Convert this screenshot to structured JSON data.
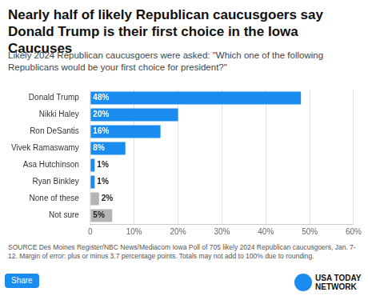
{
  "chart_data": {
    "type": "bar",
    "orientation": "horizontal",
    "title": "Nearly half of likely Republican caucusgoers say Donald Trump is their first choice in the Iowa Caucuses",
    "subtitle": "Likely 2024 Republican caucusgoers were asked: \"Which one of the following Republicans would be your first choice for president?\"",
    "source": "SOURCE Des Moines Register/NBC News/Mediacom Iowa Poll of 705 likely 2024 Republican caucusgoers, Jan. 7-12. Margin of error: plus or minus 3.7 percentage points. Totals may not add to 100% due to rounding.",
    "categories": [
      "Donald Trump",
      "Nikki Haley",
      "Ron DeSantis",
      "Vivek Ramaswamy",
      "Asa Hutchinson",
      "Ryan Binkley",
      "None of these",
      "Not sure"
    ],
    "values": [
      48,
      20,
      16,
      8,
      1,
      1,
      2,
      5
    ],
    "value_labels": [
      "48%",
      "20%",
      "16%",
      "8%",
      "1%",
      "1%",
      "2%",
      "5%"
    ],
    "colors": [
      "#1a8cf0",
      "#1a8cf0",
      "#1a8cf0",
      "#1a8cf0",
      "#1a8cf0",
      "#1a8cf0",
      "#b4b4b4",
      "#b4b4b4"
    ],
    "xlim": [
      0,
      60
    ],
    "xticks": [
      0,
      {
        "value": 10,
        "label": "10%"
      },
      {
        "value": 20,
        "label": "20%"
      },
      {
        "value": 30,
        "label": "30%"
      },
      {
        "value": 40,
        "label": "40%"
      },
      {
        "value": 50,
        "label": "50%"
      },
      {
        "value": 60,
        "label": "60%"
      }
    ],
    "grid": true,
    "data_labels": true
  },
  "footer": {
    "share": "Share",
    "logo": "USA TODAY NETWORK"
  }
}
